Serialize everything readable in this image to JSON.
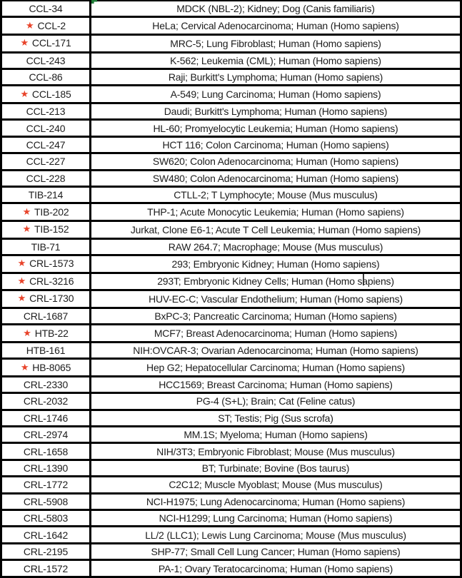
{
  "colors": {
    "border": "#000000",
    "text": "#1d1d1d",
    "star": "#e8432a",
    "flag_green": "#1d7a35",
    "background": "#ffffff"
  },
  "icons": {
    "star_glyph": "★"
  },
  "edit_state": {
    "caret_visible_in_row": "CRL-3216"
  },
  "table": {
    "rows": [
      {
        "id": "CCL-34",
        "starred": false,
        "description": "MDCK (NBL-2); Kidney; Dog (Canis familiaris)"
      },
      {
        "id": "CCL-2",
        "starred": true,
        "description": "HeLa; Cervical Adenocarcinoma; Human (Homo sapiens)"
      },
      {
        "id": "CCL-171",
        "starred": true,
        "description": "MRC-5; Lung Fibroblast; Human (Homo sapiens)"
      },
      {
        "id": "CCL-243",
        "starred": false,
        "description": "K-562; Leukemia (CML); Human (Homo sapiens)"
      },
      {
        "id": "CCL-86",
        "starred": false,
        "description": "Raji; Burkitt's Lymphoma; Human (Homo sapiens)"
      },
      {
        "id": "CCL-185",
        "starred": true,
        "description": "A-549; Lung Carcinoma; Human (Homo sapiens)"
      },
      {
        "id": "CCL-213",
        "starred": false,
        "description": "Daudi; Burkitt's Lymphoma; Human (Homo sapiens)"
      },
      {
        "id": "CCL-240",
        "starred": false,
        "description": "HL-60; Promyelocytic Leukemia; Human (Homo sapiens)"
      },
      {
        "id": "CCL-247",
        "starred": false,
        "description": "HCT 116; Colon Carcinoma; Human (Homo sapiens)"
      },
      {
        "id": "CCL-227",
        "starred": false,
        "description": "SW620; Colon Adenocarcinoma; Human (Homo sapiens)"
      },
      {
        "id": "CCL-228",
        "starred": false,
        "description": "SW480; Colon Adenocarcinoma; Human (Homo sapiens)"
      },
      {
        "id": "TIB-214",
        "starred": false,
        "description": "CTLL-2; T Lymphocyte; Mouse (Mus musculus)"
      },
      {
        "id": "TIB-202",
        "starred": true,
        "description": "THP-1; Acute Monocytic Leukemia; Human (Homo sapiens)"
      },
      {
        "id": "TIB-152",
        "starred": true,
        "description": "Jurkat, Clone E6-1; Acute T Cell Leukemia; Human (Homo sapiens)"
      },
      {
        "id": "TIB-71",
        "starred": false,
        "description": "RAW 264.7; Macrophage; Mouse (Mus musculus)"
      },
      {
        "id": "CRL-1573",
        "starred": true,
        "description": "293; Embryonic Kidney; Human (Homo sapiens)"
      },
      {
        "id": "CRL-3216",
        "starred": true,
        "description": "293T; Embryonic Kidney Cells; Human (Homo sapiens)"
      },
      {
        "id": "CRL-1730",
        "starred": true,
        "description": "HUV-EC-C; Vascular Endothelium; Human (Homo sapiens)"
      },
      {
        "id": "CRL-1687",
        "starred": false,
        "description": "BxPC-3; Pancreatic Carcinoma; Human (Homo sapiens)"
      },
      {
        "id": "HTB-22",
        "starred": true,
        "description": "MCF7; Breast Adenocarcinoma; Human (Homo sapiens)"
      },
      {
        "id": "HTB-161",
        "starred": false,
        "description": "NIH:OVCAR-3; Ovarian Adenocarcinoma; Human (Homo sapiens)"
      },
      {
        "id": "HB-8065",
        "starred": true,
        "description": "Hep G2; Hepatocellular Carcinoma; Human (Homo sapiens)"
      },
      {
        "id": "CRL-2330",
        "starred": false,
        "description": "HCC1569; Breast Carcinoma; Human (Homo sapiens)"
      },
      {
        "id": "CRL-2032",
        "starred": false,
        "description": "PG-4 (S+L); Brain; Cat (Feline catus)"
      },
      {
        "id": "CRL-1746",
        "starred": false,
        "description": "ST; Testis; Pig (Sus scrofa)"
      },
      {
        "id": "CRL-2974",
        "starred": false,
        "description": "MM.1S; Myeloma; Human (Homo sapiens)"
      },
      {
        "id": "CRL-1658",
        "starred": false,
        "description": "NIH/3T3; Embryonic Fibroblast; Mouse (Mus musculus)"
      },
      {
        "id": "CRL-1390",
        "starred": false,
        "description": "BT; Turbinate; Bovine (Bos taurus)"
      },
      {
        "id": "CRL-1772",
        "starred": false,
        "description": "C2C12; Muscle Myoblast; Mouse (Mus musculus)"
      },
      {
        "id": "CRL-5908",
        "starred": false,
        "description": "NCI-H1975; Lung Adenocarcinoma; Human (Homo sapiens)"
      },
      {
        "id": "CRL-5803",
        "starred": false,
        "description": "NCI-H1299; Lung Carcinoma; Human (Homo sapiens)"
      },
      {
        "id": "CRL-1642",
        "starred": false,
        "description": "LL/2 (LLC1); Lewis Lung Carcinoma; Mouse (Mus musculus)"
      },
      {
        "id": "CRL-2195",
        "starred": false,
        "description": "SHP-77; Small Cell Lung Cancer; Human (Homo sapiens)"
      },
      {
        "id": "CRL-1572",
        "starred": false,
        "description": "PA-1; Ovary Teratocarcinoma; Human (Homo sapiens)"
      }
    ]
  }
}
